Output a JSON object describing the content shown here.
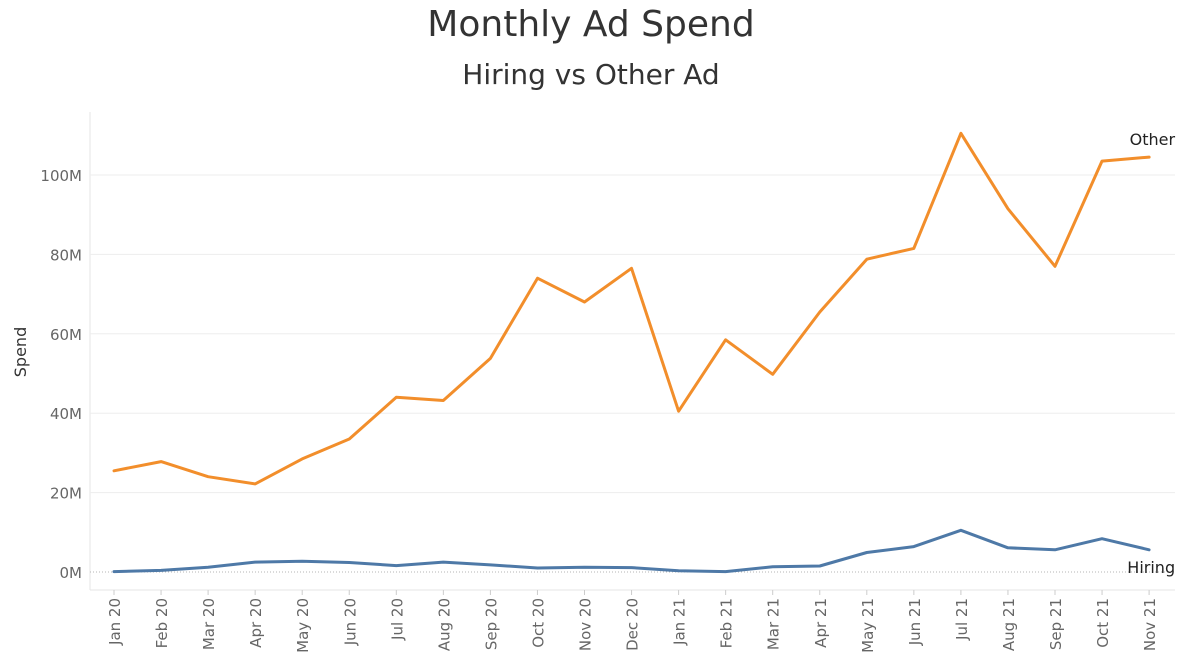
{
  "chart_data": {
    "type": "line",
    "title": "Monthly Ad Spend",
    "subtitle": "Hiring vs Other Ad",
    "xlabel": "",
    "ylabel": "Spend",
    "categories": [
      "Jan 20",
      "Feb 20",
      "Mar 20",
      "Apr 20",
      "May 20",
      "Jun 20",
      "Jul 20",
      "Aug 20",
      "Sep 20",
      "Oct 20",
      "Nov 20",
      "Dec 20",
      "Jan 21",
      "Feb 21",
      "Mar 21",
      "Apr 21",
      "May 21",
      "Jun 21",
      "Jul 21",
      "Aug 21",
      "Sep 21",
      "Oct 21",
      "Nov 21"
    ],
    "ylim": [
      0,
      116
    ],
    "yticks": [
      0,
      20,
      40,
      60,
      80,
      100
    ],
    "ytick_labels": [
      "0M",
      "20M",
      "40M",
      "60M",
      "80M",
      "100M"
    ],
    "series": [
      {
        "name": "Other",
        "color": "#F28E2B",
        "values": [
          25.5,
          27.8,
          24.0,
          22.2,
          28.5,
          33.5,
          44.0,
          43.2,
          53.8,
          74.0,
          68.0,
          76.5,
          40.5,
          58.5,
          49.8,
          65.5,
          78.8,
          81.5,
          110.5,
          91.5,
          77.0,
          103.5,
          104.5
        ]
      },
      {
        "name": "Hiring",
        "color": "#4E79A7",
        "values": [
          0.1,
          0.4,
          1.2,
          2.5,
          2.7,
          2.4,
          1.6,
          2.5,
          1.8,
          1.0,
          1.2,
          1.1,
          0.3,
          0.1,
          1.3,
          1.5,
          4.9,
          6.4,
          10.5,
          6.1,
          5.6,
          8.4,
          5.6
        ]
      }
    ],
    "grid": "horizontal",
    "legend": "labels at line ends"
  }
}
